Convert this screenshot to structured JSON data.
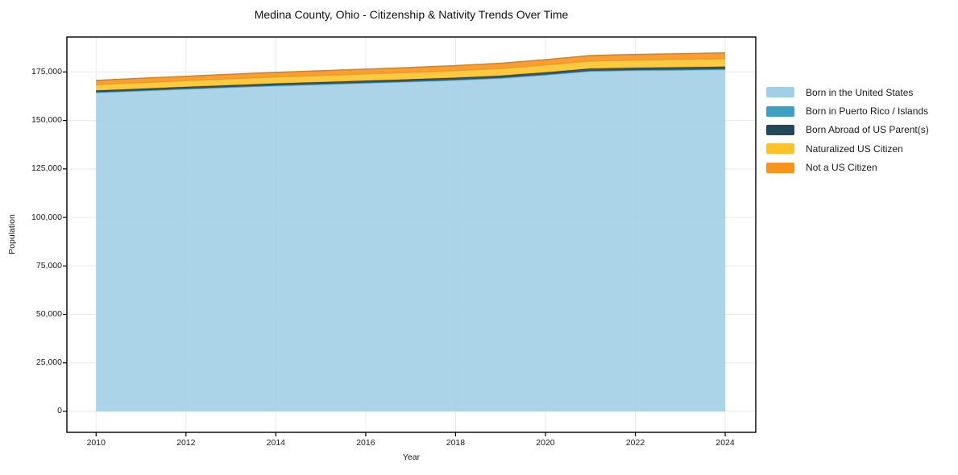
{
  "title": "Medina County, Ohio - Citizenship & Nativity Trends Over Time",
  "chart_data": {
    "type": "area",
    "stacked": true,
    "title": "Medina County, Ohio - Citizenship & Nativity Trends Over Time",
    "xlabel": "Year",
    "ylabel": "Population",
    "grid": true,
    "legend_position": "right-outside",
    "x": [
      2010,
      2011,
      2012,
      2013,
      2014,
      2015,
      2016,
      2017,
      2018,
      2019,
      2020,
      2021,
      2022,
      2023,
      2024
    ],
    "xlim": [
      2009.35,
      2024.68
    ],
    "ylim": [
      -10800,
      193000
    ],
    "x_ticks": {
      "values": [
        2010,
        2012,
        2014,
        2016,
        2018,
        2020,
        2022,
        2024
      ],
      "labels": [
        "2010",
        "2012",
        "2014",
        "2016",
        "2018",
        "2020",
        "2022",
        "2024"
      ]
    },
    "y_ticks": {
      "values": [
        0,
        25000,
        50000,
        75000,
        100000,
        125000,
        150000,
        175000
      ],
      "labels": [
        "0",
        "25,000",
        "50,000",
        "75,000",
        "100,000",
        "125,000",
        "150,000",
        "175,000"
      ]
    },
    "series": [
      {
        "name": "Born in the United States",
        "color": "#a2cfe6",
        "values": [
          164300,
          165200,
          166100,
          167000,
          167800,
          168500,
          169200,
          169900,
          170700,
          171700,
          173400,
          175300,
          175700,
          175900,
          176200
        ]
      },
      {
        "name": "Born in Puerto Rico / Islands",
        "color": "#3fa0c1",
        "values": [
          250,
          260,
          270,
          270,
          280,
          280,
          290,
          290,
          300,
          300,
          310,
          310,
          320,
          320,
          330
        ]
      },
      {
        "name": "Born Abroad of US Parent(s)",
        "color": "#23485b",
        "values": [
          900,
          920,
          950,
          950,
          1000,
          1000,
          1020,
          1050,
          1050,
          1100,
          1100,
          1150,
          1150,
          1200,
          1200
        ]
      },
      {
        "name": "Naturalized US Citizen",
        "color": "#fcc32d",
        "values": [
          3000,
          3080,
          3150,
          3250,
          3300,
          3380,
          3450,
          3520,
          3600,
          3680,
          3750,
          3850,
          3950,
          4020,
          4100
        ]
      },
      {
        "name": "Not a US Citizen",
        "color": "#f6941e",
        "values": [
          2200,
          2250,
          2300,
          2350,
          2400,
          2450,
          2500,
          2550,
          2600,
          2680,
          2750,
          2850,
          2900,
          2950,
          3000
        ]
      }
    ]
  }
}
